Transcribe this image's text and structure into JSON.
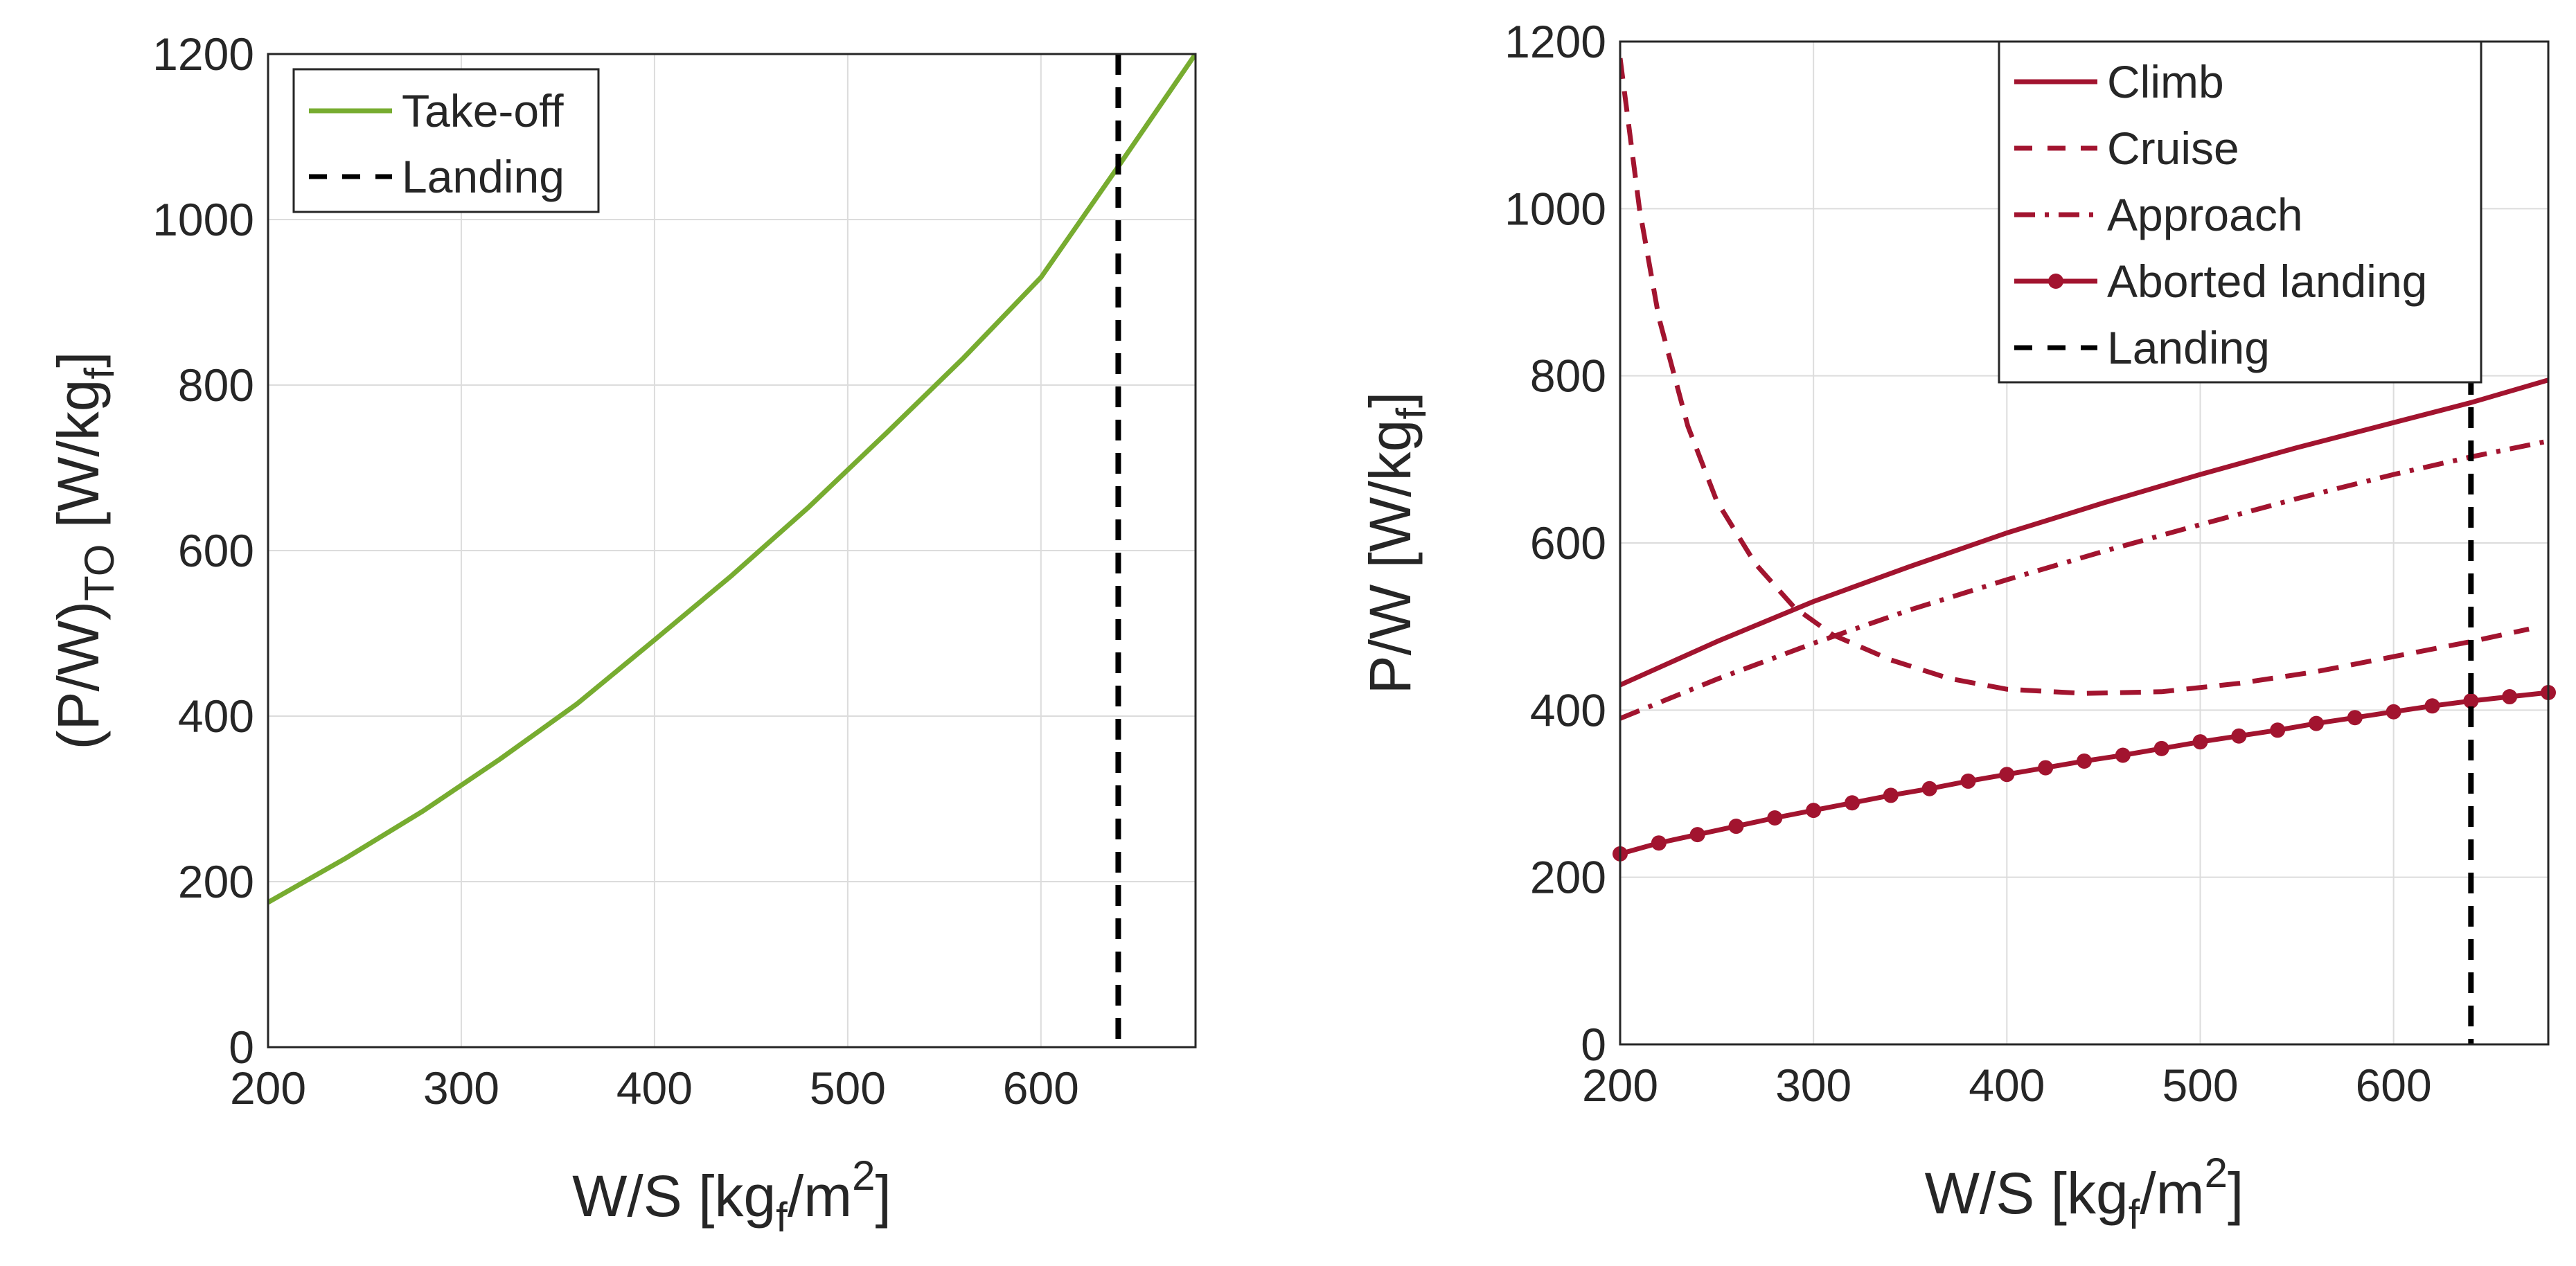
{
  "chart_data": [
    {
      "type": "line",
      "xlabel": {
        "main": "W/S [kg",
        "sub": "f",
        "mid": "/m",
        "sup": "2",
        "end": "]"
      },
      "ylabel": {
        "main": "(P/W)",
        "sub1": "TO",
        "mid": " [W/kg",
        "sub2": "f",
        "end": "]"
      },
      "xlim": [
        200,
        680
      ],
      "ylim": [
        0,
        1200
      ],
      "xticks": [
        "200",
        "300",
        "400",
        "500",
        "600"
      ],
      "yticks": [
        "0",
        "200",
        "400",
        "600",
        "800",
        "1000",
        "1200"
      ],
      "grid": true,
      "legend_position": "top-left",
      "series": [
        {
          "name": "Take-off",
          "style": "solid",
          "color": "#77ac30",
          "x": [
            200,
            240,
            280,
            320,
            360,
            400,
            440,
            480,
            520,
            560,
            600,
            640,
            680
          ],
          "y": [
            175,
            228,
            285,
            348,
            415,
            492,
            570,
            653,
            742,
            833,
            930,
            1064,
            1200
          ]
        },
        {
          "name": "Landing",
          "style": "dashed",
          "color": "#000000",
          "vline_x": 640
        }
      ]
    },
    {
      "type": "line",
      "xlabel": {
        "main": "W/S [kg",
        "sub": "f",
        "mid": "/m",
        "sup": "2",
        "end": "]"
      },
      "ylabel": {
        "main": "P/W [W/kg",
        "sub": "f",
        "end": "]"
      },
      "xlim": [
        200,
        680
      ],
      "ylim": [
        0,
        1200
      ],
      "xticks": [
        "200",
        "300",
        "400",
        "500",
        "600"
      ],
      "yticks": [
        "0",
        "200",
        "400",
        "600",
        "800",
        "1000",
        "1200"
      ],
      "grid": true,
      "legend_position": "top-right",
      "series": [
        {
          "name": "Climb",
          "style": "solid",
          "color": "#a2142f",
          "x": [
            200,
            250,
            300,
            350,
            400,
            450,
            500,
            550,
            600,
            640,
            680
          ],
          "y": [
            430,
            482,
            530,
            572,
            612,
            648,
            682,
            714,
            744,
            768,
            795
          ]
        },
        {
          "name": "Cruise",
          "style": "dashed",
          "color": "#a2142f",
          "x": [
            200,
            210,
            220,
            235,
            250,
            270,
            290,
            310,
            340,
            370,
            400,
            440,
            480,
            520,
            560,
            600,
            640,
            670
          ],
          "y": [
            1180,
            1000,
            870,
            740,
            650,
            575,
            523,
            490,
            460,
            438,
            425,
            420,
            422,
            432,
            446,
            464,
            482,
            497
          ]
        },
        {
          "name": "Approach",
          "style": "dashdot",
          "color": "#a2142f",
          "x": [
            200,
            250,
            300,
            350,
            400,
            450,
            500,
            550,
            600,
            640,
            680
          ],
          "y": [
            390,
            437,
            480,
            520,
            556,
            590,
            622,
            653,
            682,
            703,
            722
          ]
        },
        {
          "name": "Aborted landing",
          "style": "solid-marker",
          "color": "#a2142f",
          "x": [
            200,
            220,
            240,
            260,
            280,
            300,
            320,
            340,
            360,
            380,
            400,
            420,
            440,
            460,
            480,
            500,
            520,
            540,
            560,
            580,
            600,
            620,
            640,
            660,
            680
          ],
          "y": [
            228,
            241,
            251,
            261,
            271,
            280,
            289,
            298,
            306,
            315,
            323,
            331,
            339,
            346,
            354,
            362,
            369,
            376,
            384,
            391,
            398,
            405,
            411,
            416,
            421
          ]
        },
        {
          "name": "Landing",
          "style": "dashed",
          "color": "#000000",
          "vline_x": 640
        }
      ]
    }
  ]
}
